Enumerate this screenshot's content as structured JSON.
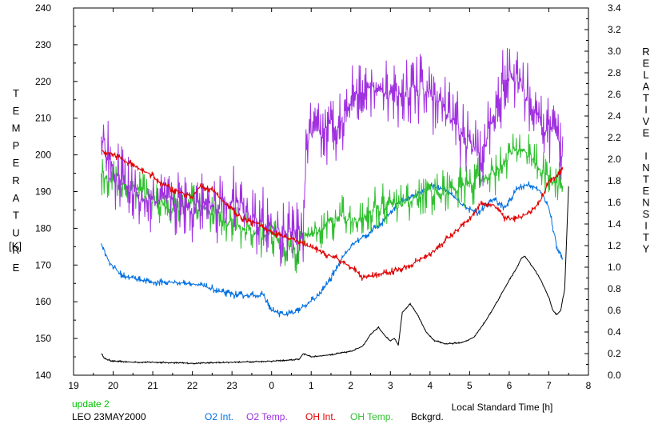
{
  "chart_data": {
    "type": "line",
    "left_axis_label": "TEMPERATURE",
    "left_axis_unit": "[K]",
    "right_axis_label": "RELATIVE INTENSITY",
    "xlabel": "Local Standard Time [h]",
    "xlim": [
      19,
      32
    ],
    "x_ticks": [
      19,
      20,
      21,
      22,
      23,
      24,
      25,
      26,
      27,
      28,
      29,
      30,
      31,
      32
    ],
    "x_tick_labels": [
      "19",
      "20",
      "21",
      "22",
      "23",
      "0",
      "1",
      "2",
      "3",
      "4",
      "5",
      "6",
      "7",
      "8"
    ],
    "ylim_left": [
      140,
      240
    ],
    "y_ticks_left": [
      140,
      150,
      160,
      170,
      180,
      190,
      200,
      210,
      220,
      230,
      240
    ],
    "y_tick_labels_left": [
      "140",
      "150",
      "160",
      "170",
      "180",
      "190",
      "200",
      "210",
      "220",
      "230",
      "240"
    ],
    "ylim_right": [
      0.0,
      3.4
    ],
    "y_ticks_right": [
      0.0,
      0.2,
      0.4,
      0.6,
      0.8,
      1.0,
      1.2,
      1.4,
      1.6,
      1.8,
      2.0,
      2.2,
      2.4,
      2.6,
      2.8,
      3.0,
      3.2,
      3.4
    ],
    "y_tick_labels_right": [
      "0.0",
      "0.2",
      "0.4",
      "0.6",
      "0.8",
      "1.0",
      "1.2",
      "1.4",
      "1.6",
      "1.8",
      "2.0",
      "2.2",
      "2.4",
      "2.6",
      "2.8",
      "3.0",
      "3.2",
      "3.4"
    ],
    "grid": false,
    "notes": [
      "update 2",
      "LEO 23MAY2000"
    ],
    "note_colors": [
      "#00c000",
      "#000000"
    ],
    "series": [
      {
        "name": "O2 Int.",
        "axis": "right",
        "color": "#0070e0",
        "noise": 0.03,
        "x": [
          19.7,
          19.9,
          20.2,
          20.5,
          21.0,
          21.5,
          22.0,
          22.5,
          22.8,
          23.2,
          23.5,
          23.8,
          24.0,
          24.3,
          24.6,
          24.9,
          25.2,
          25.5,
          25.8,
          26.1,
          26.4,
          26.8,
          27.2,
          27.6,
          28.0,
          28.4,
          28.8,
          29.2,
          29.6,
          29.9,
          30.2,
          30.5,
          30.8,
          31.0,
          31.2,
          31.35
        ],
        "y": [
          1.22,
          1.05,
          0.93,
          0.9,
          0.86,
          0.86,
          0.85,
          0.8,
          0.76,
          0.74,
          0.74,
          0.74,
          0.6,
          0.56,
          0.58,
          0.66,
          0.74,
          0.9,
          1.1,
          1.23,
          1.3,
          1.42,
          1.6,
          1.66,
          1.75,
          1.72,
          1.58,
          1.5,
          1.63,
          1.55,
          1.73,
          1.77,
          1.7,
          1.55,
          1.2,
          1.05
        ]
      },
      {
        "name": "O2 Temp.",
        "axis": "left",
        "color": "#a030e0",
        "noise": 8,
        "x": [
          19.7,
          20.0,
          20.4,
          20.8,
          21.2,
          21.6,
          22.0,
          22.4,
          22.8,
          23.2,
          23.6,
          24.0,
          24.4,
          24.8,
          24.9,
          25.2,
          25.5,
          25.8,
          26.1,
          26.4,
          26.7,
          27.0,
          27.4,
          27.8,
          28.2,
          28.6,
          29.0,
          29.3,
          29.6,
          29.9,
          30.2,
          30.5,
          30.8,
          31.1,
          31.35
        ],
        "y": [
          205,
          196,
          191,
          188,
          187,
          187,
          186,
          186,
          187,
          186,
          181,
          180,
          178,
          179,
          205,
          205,
          208,
          210,
          218,
          218,
          219,
          216,
          217,
          218,
          215,
          208,
          203,
          198,
          210,
          222,
          221,
          215,
          208,
          206,
          200
        ]
      },
      {
        "name": "OH Int.",
        "axis": "right",
        "color": "#e00000",
        "noise": 0.03,
        "x": [
          19.7,
          20.0,
          20.3,
          20.6,
          20.9,
          21.2,
          21.5,
          21.8,
          22.0,
          22.2,
          22.5,
          22.8,
          23.1,
          23.4,
          23.7,
          24.0,
          24.3,
          24.6,
          24.9,
          25.2,
          25.5,
          25.8,
          26.1,
          26.3,
          26.6,
          26.9,
          27.2,
          27.5,
          27.8,
          28.1,
          28.4,
          28.7,
          29.0,
          29.3,
          29.6,
          29.9,
          30.2,
          30.5,
          30.8,
          31.0,
          31.2,
          31.35
        ],
        "y": [
          2.08,
          2.05,
          1.98,
          1.92,
          1.87,
          1.78,
          1.72,
          1.68,
          1.65,
          1.75,
          1.72,
          1.6,
          1.5,
          1.42,
          1.4,
          1.32,
          1.28,
          1.25,
          1.2,
          1.15,
          1.1,
          1.05,
          0.98,
          0.9,
          0.92,
          0.95,
          0.98,
          1.02,
          1.08,
          1.15,
          1.25,
          1.35,
          1.45,
          1.6,
          1.58,
          1.45,
          1.45,
          1.5,
          1.62,
          1.8,
          1.85,
          1.9
        ]
      },
      {
        "name": "OH Temp.",
        "axis": "left",
        "color": "#30c030",
        "noise": 5,
        "x": [
          19.7,
          20.0,
          20.5,
          21.0,
          21.5,
          22.0,
          22.5,
          23.0,
          23.5,
          24.0,
          24.3,
          24.6,
          24.9,
          25.2,
          25.5,
          25.8,
          26.1,
          26.4,
          26.8,
          27.2,
          27.6,
          28.0,
          28.4,
          28.8,
          29.2,
          29.6,
          30.0,
          30.3,
          30.6,
          30.9,
          31.2,
          31.35
        ],
        "y": [
          195,
          193,
          191,
          188,
          185,
          186,
          185,
          181,
          179,
          178,
          175,
          174,
          178,
          180,
          182,
          183,
          182,
          184,
          186,
          186,
          188,
          190,
          190,
          191,
          193,
          195,
          200,
          202,
          199,
          194,
          192,
          192
        ]
      },
      {
        "name": "Bckgrd.",
        "axis": "right",
        "color": "#000000",
        "noise": 0.006,
        "x": [
          19.7,
          19.8,
          20.0,
          20.5,
          21.0,
          22.0,
          23.0,
          24.0,
          24.5,
          24.7,
          24.8,
          25.0,
          25.5,
          26.0,
          26.3,
          26.5,
          26.7,
          26.9,
          27.0,
          27.1,
          27.2,
          27.3,
          27.5,
          27.7,
          27.9,
          28.1,
          28.4,
          28.8,
          29.1,
          29.4,
          29.6,
          29.8,
          30.0,
          30.2,
          30.3,
          30.4,
          30.6,
          30.8,
          31.0,
          31.1,
          31.2,
          31.3,
          31.4,
          31.5
        ],
        "y": [
          0.2,
          0.15,
          0.13,
          0.12,
          0.12,
          0.11,
          0.12,
          0.13,
          0.14,
          0.15,
          0.2,
          0.17,
          0.19,
          0.22,
          0.27,
          0.38,
          0.44,
          0.35,
          0.32,
          0.34,
          0.28,
          0.58,
          0.66,
          0.55,
          0.4,
          0.32,
          0.29,
          0.3,
          0.35,
          0.5,
          0.62,
          0.75,
          0.88,
          1.0,
          1.08,
          1.1,
          1.0,
          0.88,
          0.72,
          0.6,
          0.56,
          0.6,
          0.8,
          1.75
        ]
      }
    ]
  }
}
